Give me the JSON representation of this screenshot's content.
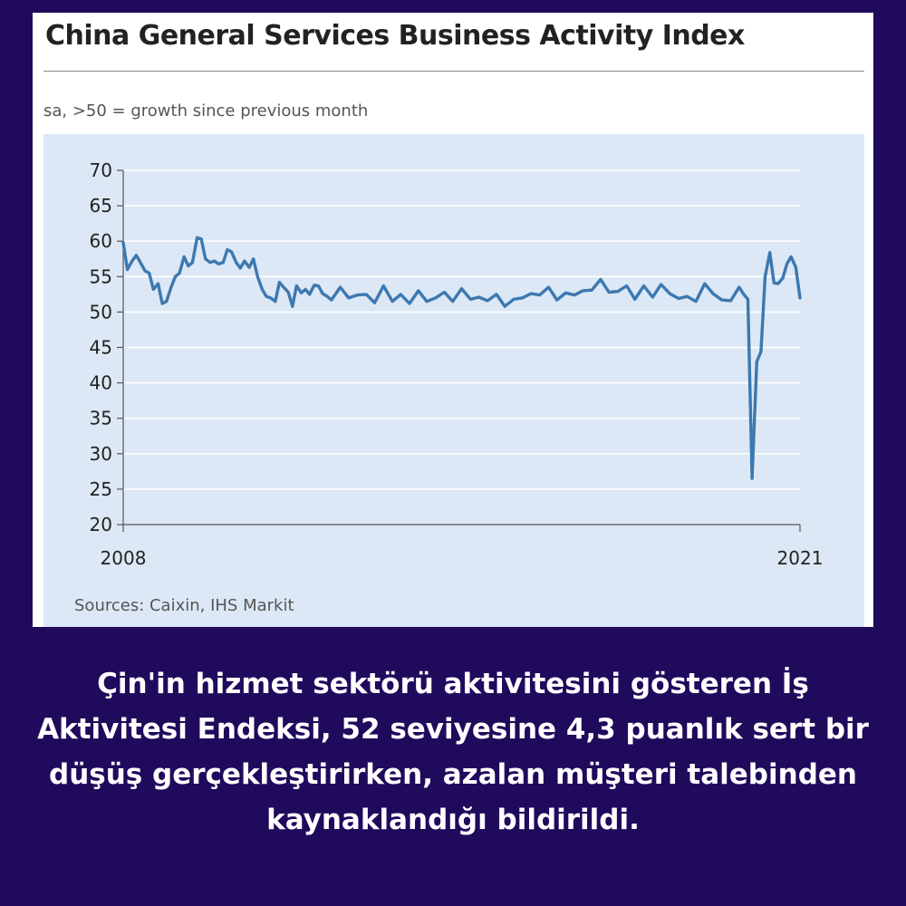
{
  "header": {
    "title": "China General Services Business Activity Index",
    "subtitle": "sa, >50 = growth since previous month"
  },
  "footer": {
    "source": "Sources: Caixin, IHS Markit"
  },
  "caption": "Çin'in hizmet sektörü aktivitesini gösteren İş Aktivitesi Endeksi, 52 seviyesine 4,3 puanlık sert bir düşüş gerçekleştirirken, azalan müşteri talebinden kaynaklandığı bildirildi.",
  "colors": {
    "line": "#3d78b0",
    "plot_bg": "#dce8f5",
    "page_bg": "#1f0a5c",
    "grid": "#ffffff"
  },
  "chart_data": {
    "type": "line",
    "title": "China General Services Business Activity Index",
    "subtitle": "sa, >50 = growth since previous month",
    "xlabel": "",
    "ylabel": "",
    "x_range": [
      2008.0,
      2021.0
    ],
    "x_tick_labels": [
      "2008",
      "2021"
    ],
    "ylim": [
      20,
      70
    ],
    "y_ticks": [
      20,
      25,
      30,
      35,
      40,
      45,
      50,
      55,
      60,
      65,
      70
    ],
    "grid": true,
    "series": [
      {
        "x": [
          2008.0,
          2008.08,
          2008.17,
          2008.25,
          2008.33,
          2008.42,
          2008.5,
          2008.58,
          2008.67,
          2008.75,
          2008.83,
          2008.92,
          2009.0,
          2009.08,
          2009.17,
          2009.25,
          2009.33,
          2009.42,
          2009.5,
          2009.58,
          2009.67,
          2009.75,
          2009.83,
          2009.92,
          2010.0,
          2010.08,
          2010.17,
          2010.25,
          2010.33,
          2010.42,
          2010.5,
          2010.58,
          2010.67,
          2010.75,
          2010.83,
          2010.92,
          2011.0,
          2011.08,
          2011.17,
          2011.25,
          2011.33,
          2011.42,
          2011.5,
          2011.58,
          2011.67,
          2011.75,
          2011.83,
          2011.92,
          2012.0,
          2012.17,
          2012.33,
          2012.5,
          2012.67,
          2012.83,
          2013.0,
          2013.17,
          2013.33,
          2013.5,
          2013.67,
          2013.83,
          2014.0,
          2014.17,
          2014.33,
          2014.5,
          2014.67,
          2014.83,
          2015.0,
          2015.17,
          2015.33,
          2015.5,
          2015.67,
          2015.83,
          2016.0,
          2016.17,
          2016.33,
          2016.5,
          2016.67,
          2016.83,
          2017.0,
          2017.17,
          2017.33,
          2017.5,
          2017.67,
          2017.83,
          2018.0,
          2018.17,
          2018.33,
          2018.5,
          2018.67,
          2018.83,
          2019.0,
          2019.17,
          2019.33,
          2019.5,
          2019.67,
          2019.83,
          2019.92,
          2020.0,
          2020.08,
          2020.17,
          2020.25,
          2020.33,
          2020.42,
          2020.5,
          2020.58,
          2020.67,
          2020.75,
          2020.83,
          2020.92,
          2021.0
        ],
        "values": [
          59.8,
          56.0,
          57.2,
          58.0,
          57.0,
          55.8,
          55.5,
          53.2,
          54.0,
          51.2,
          51.5,
          53.5,
          55.0,
          55.5,
          57.8,
          56.5,
          57.0,
          60.5,
          60.3,
          57.5,
          57.0,
          57.2,
          56.8,
          57.0,
          58.8,
          58.5,
          57.0,
          56.2,
          57.2,
          56.3,
          57.5,
          55.0,
          53.2,
          52.2,
          52.0,
          51.5,
          54.2,
          53.5,
          52.8,
          50.8,
          53.7,
          52.7,
          53.2,
          52.5,
          53.8,
          53.7,
          52.6,
          52.2,
          51.7,
          53.5,
          52.0,
          52.4,
          52.5,
          51.3,
          53.7,
          51.5,
          52.5,
          51.2,
          53.0,
          51.5,
          52.0,
          52.8,
          51.5,
          53.3,
          51.8,
          52.1,
          51.6,
          52.5,
          50.8,
          51.8,
          52.0,
          52.6,
          52.4,
          53.5,
          51.7,
          52.7,
          52.4,
          53.0,
          53.1,
          54.6,
          52.8,
          52.9,
          53.7,
          51.8,
          53.7,
          52.1,
          53.9,
          52.6,
          51.9,
          52.2,
          51.5,
          54.0,
          52.6,
          51.7,
          51.6,
          53.5,
          52.5,
          51.8,
          26.5,
          43.0,
          44.4,
          55.0,
          58.4,
          54.1,
          54.0,
          54.8,
          56.8,
          57.8,
          56.3,
          52.0
        ]
      }
    ]
  }
}
